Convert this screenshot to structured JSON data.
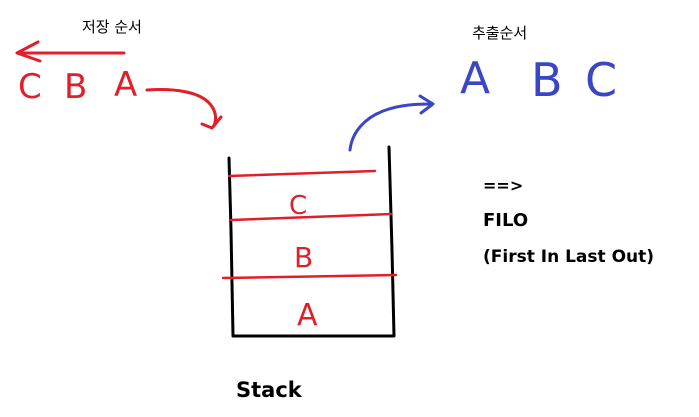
{
  "store_order": {
    "title": "저장 순서",
    "letters": [
      "C",
      "B",
      "A"
    ],
    "color": "#e11f2a"
  },
  "pop_order": {
    "title": "추출순서",
    "letters": [
      "A",
      "B",
      "C"
    ],
    "color": "#3a46c4"
  },
  "stack": {
    "label": "Stack",
    "items_top_to_bottom": [
      "C",
      "B",
      "A"
    ],
    "line_color": "#e11f2a",
    "border_color": "#000000"
  },
  "notes": {
    "arrow": "==>",
    "principle": "FILO",
    "principle_desc": "(First In Last Out)"
  }
}
